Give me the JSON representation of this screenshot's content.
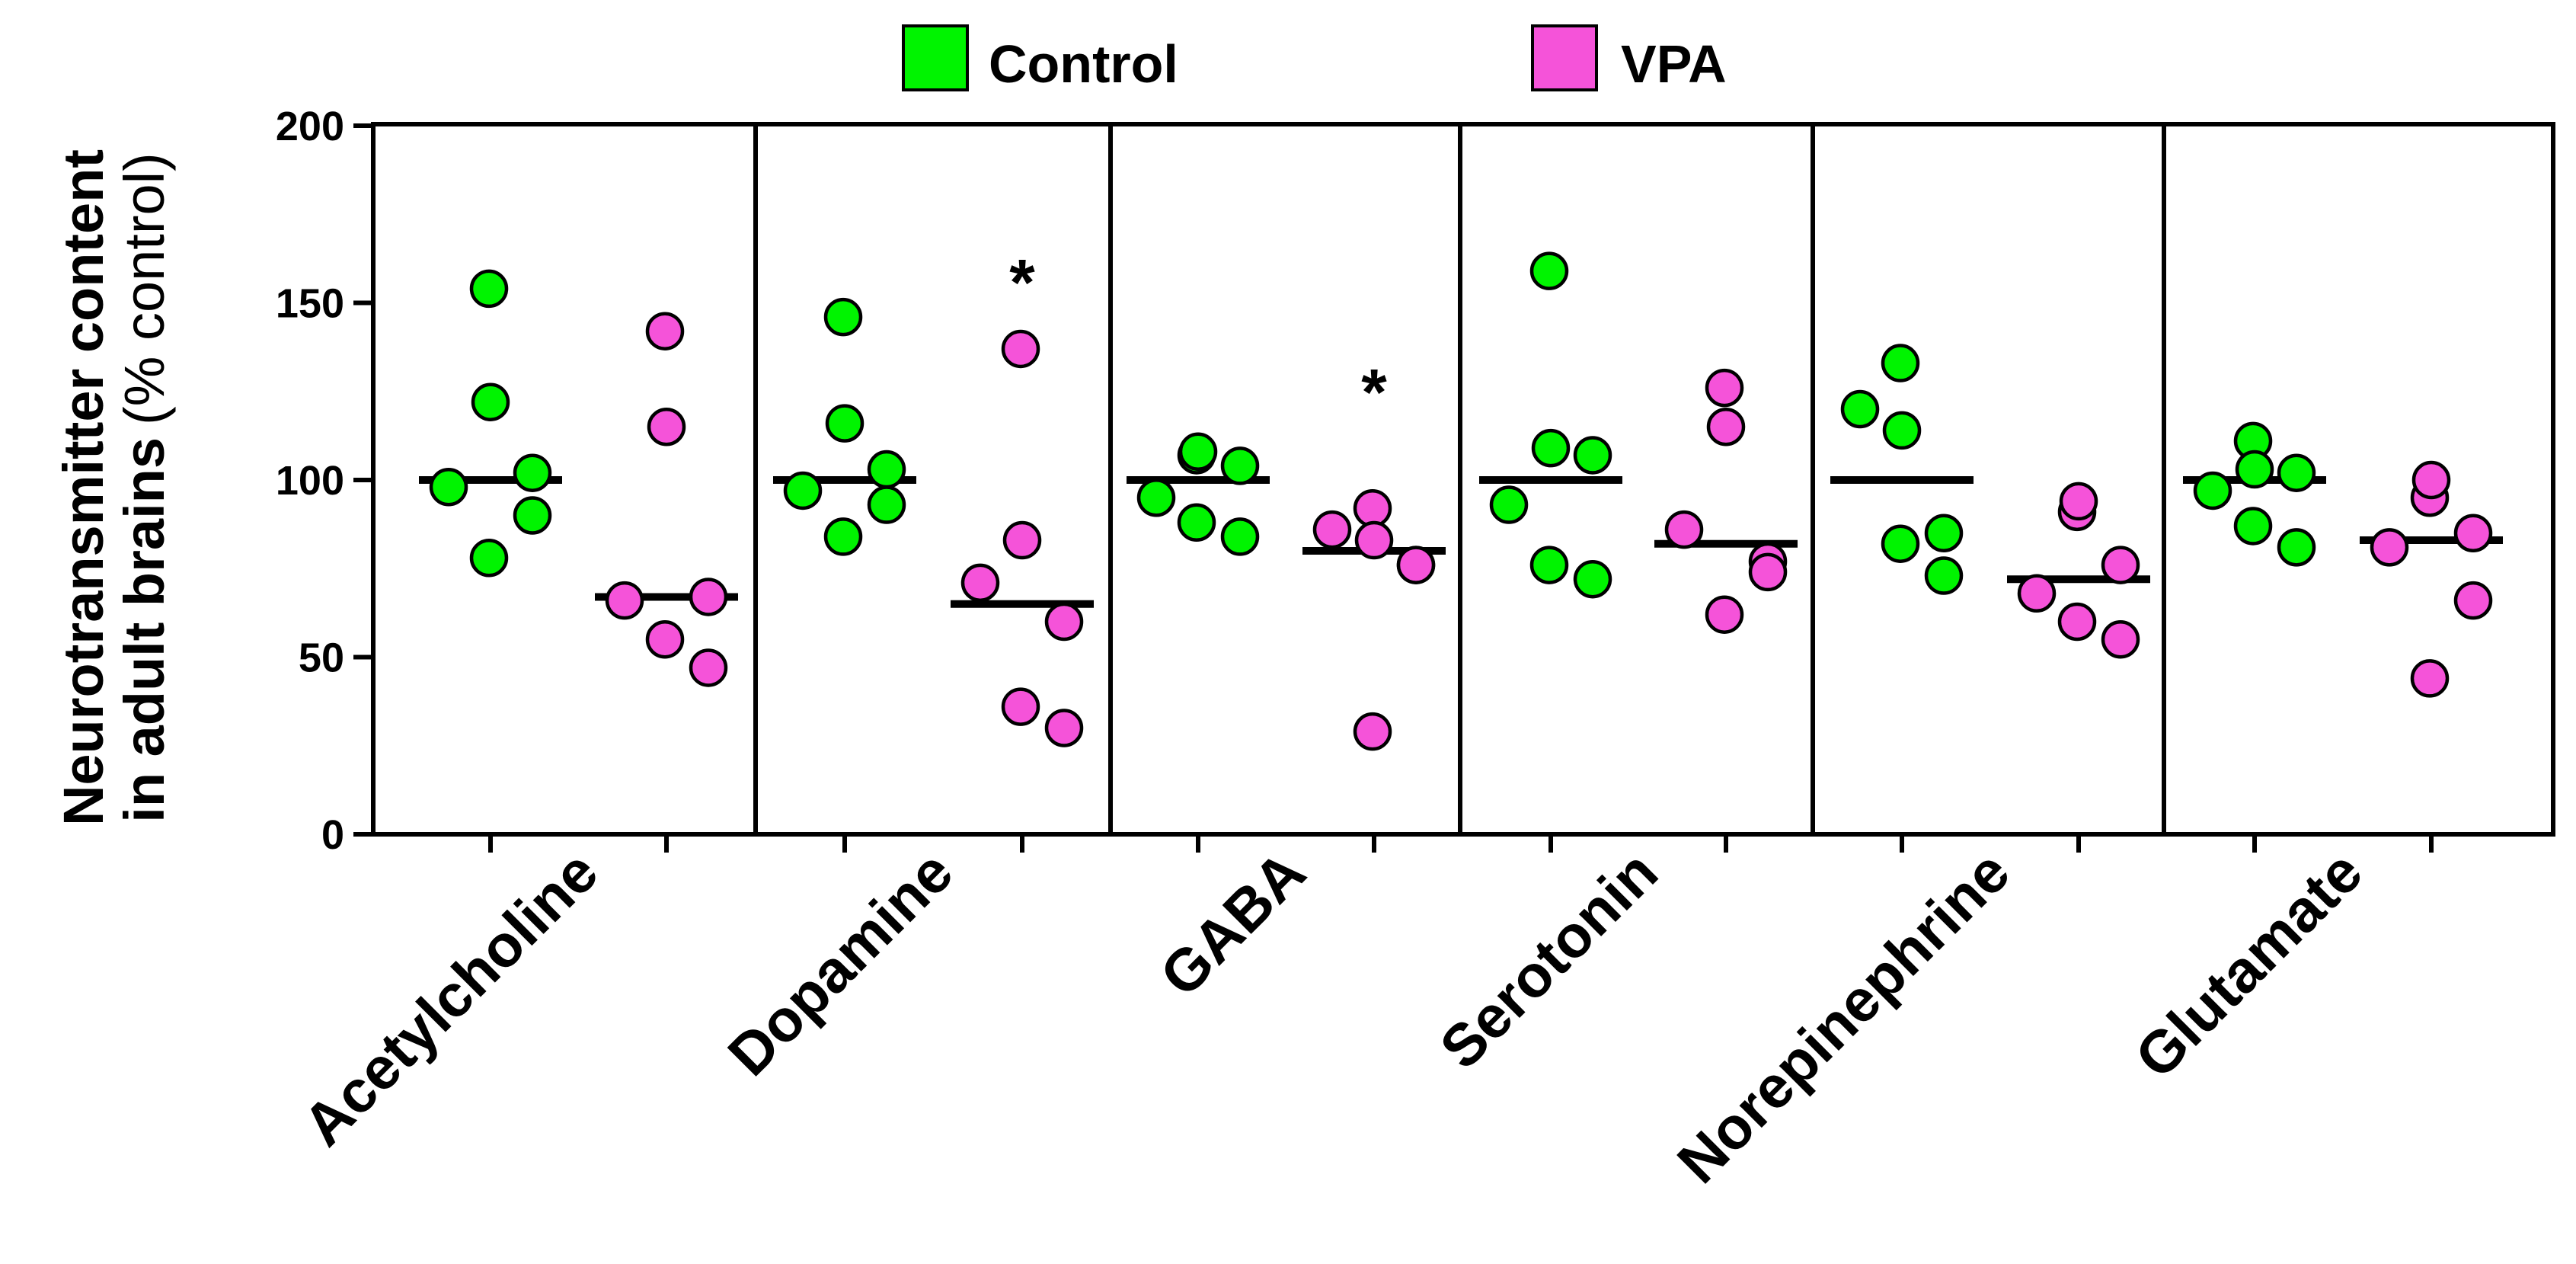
{
  "chart_data": {
    "type": "scatter",
    "title": "",
    "ylabel": {
      "bold": "Neurotransmitter content",
      "bold_line2": "in adult brains",
      "normal": "(% control)"
    },
    "ylim": [
      0,
      200
    ],
    "yticks": [
      0,
      50,
      100,
      150,
      200
    ],
    "yticklabels": [
      "0",
      "50",
      "100",
      "150",
      "200"
    ],
    "grid": false,
    "legend": {
      "placement": "top-center",
      "entries": [
        {
          "name": "Control",
          "color": "#00f400"
        },
        {
          "name": "VPA",
          "color": "#f553d9"
        }
      ]
    },
    "categories": [
      "Acetylcholine",
      "Dopamine",
      "GABA",
      "Serotonin",
      "Norepinephrine",
      "Glutamate"
    ],
    "series": [
      {
        "name": "Control",
        "color": "#00f400",
        "values": [
          [
            154,
            122,
            98,
            102,
            90,
            78
          ],
          [
            146,
            116,
            97,
            103,
            93,
            84
          ],
          [
            107,
            108,
            95,
            104,
            84,
            88
          ],
          [
            159,
            109,
            93,
            107,
            72,
            76
          ],
          [
            133,
            114,
            120,
            85,
            73,
            82
          ],
          [
            111,
            103,
            97,
            102,
            81,
            87
          ]
        ],
        "medians": [
          100,
          100,
          100,
          100,
          100,
          100
        ]
      },
      {
        "name": "VPA",
        "color": "#f553d9",
        "values": [
          [
            142,
            115,
            66,
            67,
            47,
            55
          ],
          [
            137,
            83,
            71,
            60,
            30,
            36
          ],
          [
            92,
            83,
            86,
            76,
            76,
            29
          ],
          [
            126,
            115,
            86,
            77,
            74,
            62
          ],
          [
            91,
            94,
            68,
            76,
            55,
            60
          ],
          [
            95,
            100,
            81,
            85,
            66,
            44
          ]
        ],
        "medians": [
          67,
          65,
          80,
          82,
          72,
          83
        ]
      }
    ],
    "annotations": [
      {
        "category": "Dopamine",
        "series": "VPA",
        "text": "*",
        "y": 158
      },
      {
        "category": "GABA",
        "series": "VPA",
        "text": "*",
        "y": 127
      }
    ]
  }
}
